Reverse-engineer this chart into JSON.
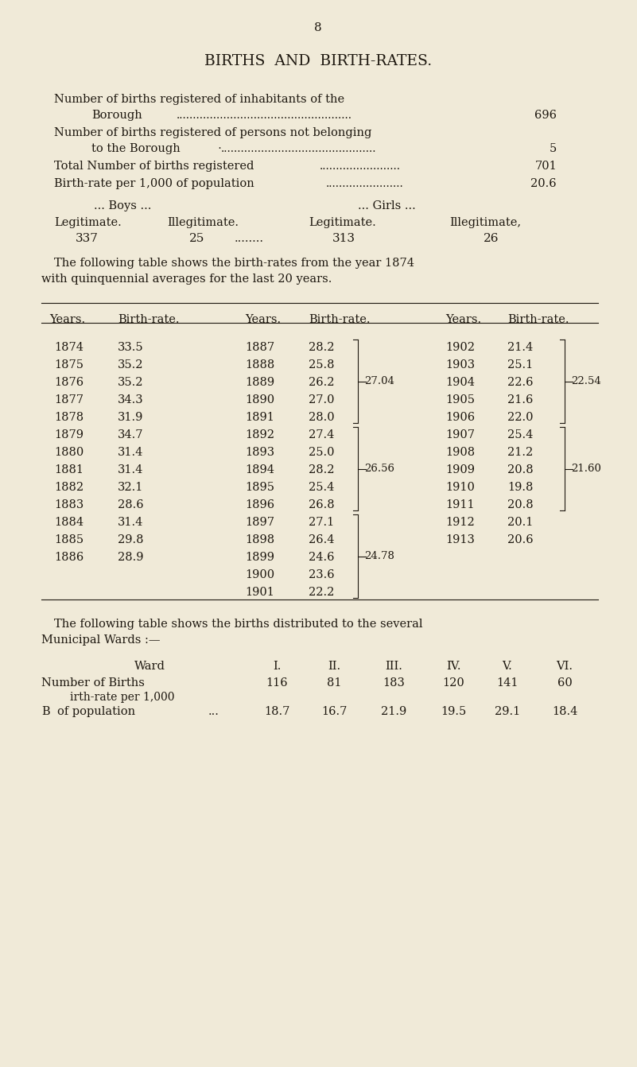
{
  "bg_color": "#f0ead8",
  "text_color": "#1e1810",
  "page_number": "8",
  "title": "BIRTHS  AND  BIRTH-RATES.",
  "birth_rate_data": [
    [
      1874,
      "33.5",
      1887,
      "28.2",
      1902,
      "21.4"
    ],
    [
      1875,
      "35.2",
      1888,
      "25.8",
      1903,
      "25.1"
    ],
    [
      1876,
      "35.2",
      1889,
      "26.2",
      1904,
      "22.6"
    ],
    [
      1877,
      "34.3",
      1890,
      "27.0",
      1905,
      "21.6"
    ],
    [
      1878,
      "31.9",
      1891,
      "28.0",
      1906,
      "22.0"
    ],
    [
      1879,
      "34.7",
      1892,
      "27.4",
      1907,
      "25.4"
    ],
    [
      1880,
      "31.4",
      1893,
      "25.0",
      1908,
      "21.2"
    ],
    [
      1881,
      "31.4",
      1894,
      "28.2",
      1909,
      "20.8"
    ],
    [
      1882,
      "32.1",
      1895,
      "25.4",
      1910,
      "19.8"
    ],
    [
      1883,
      "28.6",
      1896,
      "26.8",
      1911,
      "20.8"
    ],
    [
      1884,
      "31.4",
      1897,
      "27.1",
      1912,
      "20.1"
    ],
    [
      1885,
      "29.8",
      1898,
      "26.4",
      1913,
      "20.6"
    ],
    [
      1886,
      "28.9",
      1899,
      "24.6",
      null,
      null
    ],
    [
      null,
      null,
      1900,
      "23.6",
      null,
      null
    ],
    [
      null,
      null,
      1901,
      "22.2",
      null,
      null
    ]
  ],
  "ward_labels": [
    "I.",
    "II.",
    "III.",
    "IV.",
    "V.",
    "VI."
  ],
  "ward_births": [
    116,
    81,
    183,
    120,
    141,
    60
  ],
  "ward_birthrates": [
    "18.7",
    "16.7",
    "21.9",
    "19.5",
    "29.1",
    "18.4"
  ]
}
